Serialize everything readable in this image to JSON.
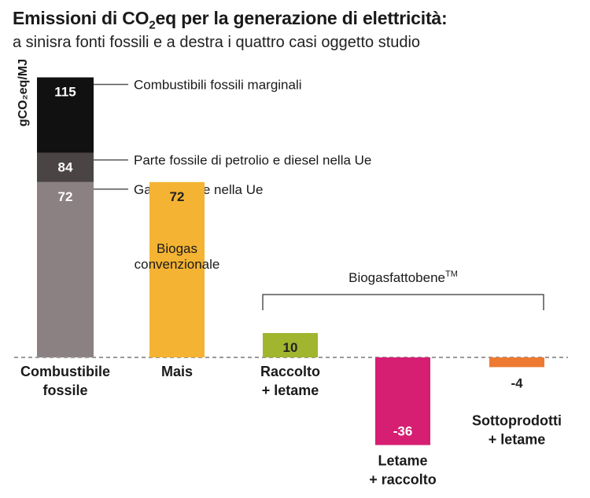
{
  "title_prefix": "Emissioni di CO",
  "title_sub": "2",
  "title_suffix": "eq per la generazione di elettricità:",
  "subtitle": "a sinisra fonti fossili e a destra i quattro casi oggetto studio",
  "chart_data": {
    "type": "bar",
    "ylabel": "gCO₂eq/MJ",
    "ylim": [
      -36,
      115
    ],
    "grid": false,
    "stacked_reference": {
      "category": [
        "Combustibile",
        "fossile"
      ],
      "segments": [
        {
          "name": "Combustibili fossili marginali",
          "value": 115,
          "color": "#111111"
        },
        {
          "name": "Parte fossile di petrolio e diesel nella Ue",
          "value": 84,
          "color": "#4a4445"
        },
        {
          "name": "Gas naturale nella Ue",
          "value": 72,
          "color": "#8c8182"
        }
      ]
    },
    "bars": [
      {
        "category": [
          "Mais"
        ],
        "value": 72,
        "label": "72",
        "top_label": [
          "Biogas",
          "convenzionale"
        ],
        "color": "#f4b332"
      },
      {
        "category": [
          "Raccolto",
          "+ letame"
        ],
        "value": 10,
        "label": "10",
        "color": "#a1b52e"
      },
      {
        "category": [
          "Letame",
          "+ raccolto"
        ],
        "value": -36,
        "label": "-36",
        "color": "#d61f73"
      },
      {
        "category": [
          "Sottoprodotti",
          "+ letame"
        ],
        "value": -4,
        "label": "-4",
        "color": "#ee7a32"
      }
    ],
    "bracket_label": "Biogasfattobene",
    "bracket_label_sup": "TM"
  }
}
